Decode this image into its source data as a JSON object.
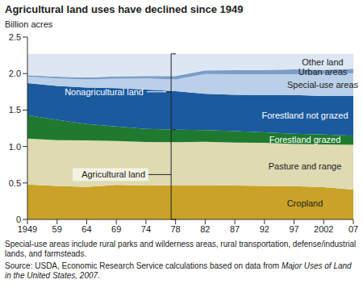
{
  "chart_data": {
    "type": "area",
    "title": "Agricultural land uses have declined since 1949",
    "y_label": "Billion acres",
    "stacked": true,
    "grid": false,
    "categories": [
      "1949",
      "59",
      "64",
      "69",
      "74",
      "78",
      "82",
      "87",
      "92",
      "97",
      "2002",
      "07"
    ],
    "ylim": [
      0,
      2.5
    ],
    "yticks": [
      0,
      0.5,
      {
        "value": 1,
        "label": "1.0"
      },
      1.5,
      {
        "value": 2,
        "label": "2.0"
      },
      2.5
    ],
    "series": [
      {
        "name": "Cropland",
        "color": "#c9a227",
        "values": [
          0.478,
          0.458,
          0.444,
          0.472,
          0.465,
          0.471,
          0.469,
          0.464,
          0.46,
          0.455,
          0.442,
          0.408
        ]
      },
      {
        "name": "Pasture and range",
        "color": "#dedab2",
        "values": [
          0.632,
          0.63,
          0.64,
          0.604,
          0.598,
          0.587,
          0.597,
          0.591,
          0.591,
          0.58,
          0.587,
          0.614
        ]
      },
      {
        "name": "Forestland grazed",
        "color": "#1f7a30",
        "values": [
          0.32,
          0.279,
          0.225,
          0.198,
          0.179,
          0.172,
          0.158,
          0.155,
          0.145,
          0.141,
          0.134,
          0.127
        ]
      },
      {
        "name": "Forestland not grazed",
        "color": "#1b5a9f",
        "values": [
          0.44,
          0.465,
          0.5,
          0.525,
          0.54,
          0.53,
          0.5,
          0.5,
          0.51,
          0.53,
          0.53,
          0.544
        ]
      },
      {
        "name": "Special-use areas",
        "color": "#b9d0e8",
        "values": [
          0.09,
          0.1,
          0.11,
          0.13,
          0.15,
          0.16,
          0.27,
          0.28,
          0.285,
          0.285,
          0.3,
          0.313
        ]
      },
      {
        "name": "Urban areas",
        "color": "#7b9dc9",
        "values": [
          0.018,
          0.027,
          0.029,
          0.031,
          0.035,
          0.045,
          0.05,
          0.057,
          0.058,
          0.066,
          0.06,
          0.061
        ]
      },
      {
        "name": "Other land",
        "color": "#dce7f3",
        "values": [
          0.292,
          0.311,
          0.322,
          0.31,
          0.303,
          0.305,
          0.226,
          0.223,
          0.221,
          0.213,
          0.217,
          0.203
        ]
      }
    ],
    "annotations": [
      {
        "text": "Nonagricultural land"
      },
      {
        "text": "Agricultural land"
      }
    ],
    "footnote": "Special-use areas include rural parks and wilderness areas, rural transportation, defense/industrial lands, and farmsteads.",
    "source": {
      "text": "Source: USDA, Economic Research Service calculations based on data from ",
      "italic": "Major Uses of Land in the United States, 2007",
      "end": "."
    }
  }
}
